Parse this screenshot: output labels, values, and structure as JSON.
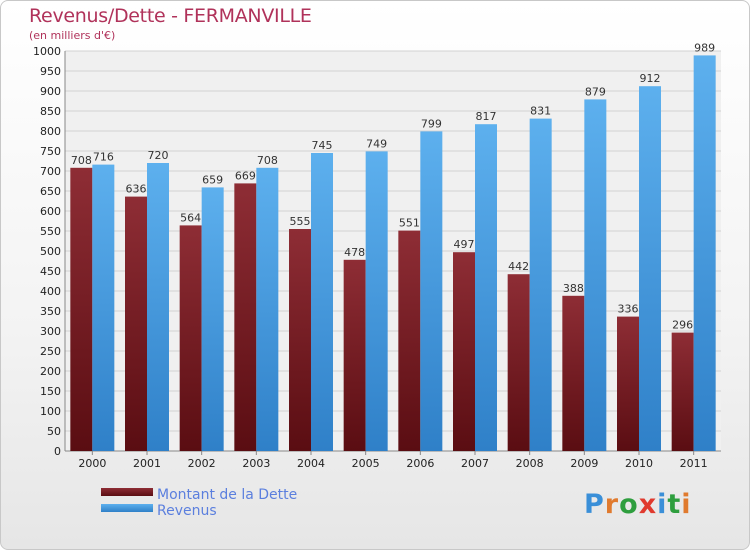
{
  "chart_data": {
    "type": "bar",
    "title": "Revenus/Dette - FERMANVILLE",
    "subtitle": "(en milliers d'€)",
    "categories": [
      "2000",
      "2001",
      "2002",
      "2003",
      "2004",
      "2005",
      "2006",
      "2007",
      "2008",
      "2009",
      "2010",
      "2011"
    ],
    "series": [
      {
        "name": "Montant de la Dette",
        "color": "#7b1e24",
        "values": [
          708,
          636,
          564,
          669,
          555,
          478,
          551,
          497,
          442,
          388,
          336,
          296
        ]
      },
      {
        "name": "Revenus",
        "color": "#4da3e6",
        "values": [
          716,
          720,
          659,
          708,
          745,
          749,
          799,
          817,
          831,
          879,
          912,
          989
        ]
      }
    ],
    "ylim": [
      0,
      1000
    ],
    "ytick_step": 50,
    "grid": true,
    "legend": "bottom-left"
  },
  "brand": {
    "letters": [
      "P",
      "r",
      "o",
      "x",
      "i",
      "t",
      "i"
    ],
    "colors": [
      "#3a8fd8",
      "#e07a2e",
      "#2e9e3e",
      "#e03a2e",
      "#3a8fd8",
      "#2e9e3e",
      "#e07a2e"
    ]
  }
}
